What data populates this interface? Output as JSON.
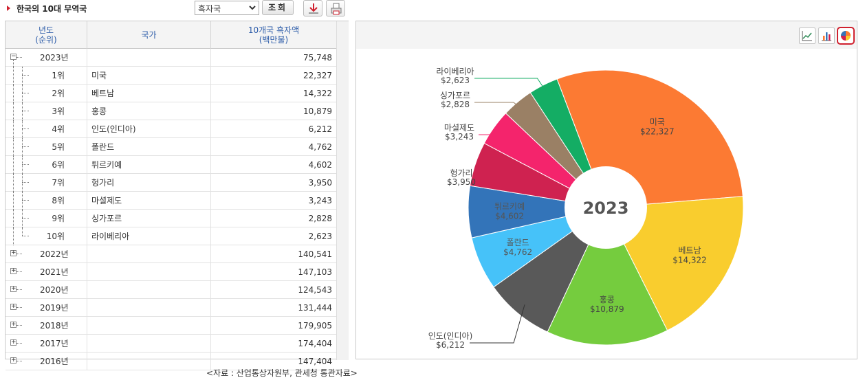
{
  "header": {
    "title": "한국의 10대 무역국",
    "select_value": "흑자국",
    "search_label": "조회"
  },
  "table": {
    "columns": [
      "년도\n(순위)",
      "국가",
      "10개국 흑자액\n(백만불)"
    ],
    "col1_line1": "년도",
    "col1_line2": "(순위)",
    "col2": "국가",
    "col3_line1": "10개국 흑자액",
    "col3_line2": "(백만불)",
    "rows": [
      {
        "kind": "year",
        "label": "2023년",
        "country": "",
        "value": "75,748",
        "expanded": true
      },
      {
        "kind": "child",
        "label": "1위",
        "country": "미국",
        "value": "22,327"
      },
      {
        "kind": "child",
        "label": "2위",
        "country": "베트남",
        "value": "14,322"
      },
      {
        "kind": "child",
        "label": "3위",
        "country": "홍콩",
        "value": "10,879"
      },
      {
        "kind": "child",
        "label": "4위",
        "country": "인도(인디아)",
        "value": "6,212"
      },
      {
        "kind": "child",
        "label": "5위",
        "country": "폴란드",
        "value": "4,762"
      },
      {
        "kind": "child",
        "label": "6위",
        "country": "튀르키예",
        "value": "4,602"
      },
      {
        "kind": "child",
        "label": "7위",
        "country": "헝가리",
        "value": "3,950"
      },
      {
        "kind": "child",
        "label": "8위",
        "country": "마셜제도",
        "value": "3,243"
      },
      {
        "kind": "child",
        "label": "9위",
        "country": "싱가포르",
        "value": "2,828"
      },
      {
        "kind": "child",
        "label": "10위",
        "country": "라이베리아",
        "value": "2,623"
      },
      {
        "kind": "year",
        "label": "2022년",
        "country": "",
        "value": "140,541",
        "expanded": false
      },
      {
        "kind": "year",
        "label": "2021년",
        "country": "",
        "value": "147,103",
        "expanded": false
      },
      {
        "kind": "year",
        "label": "2020년",
        "country": "",
        "value": "124,543",
        "expanded": false
      },
      {
        "kind": "year",
        "label": "2019년",
        "country": "",
        "value": "131,444",
        "expanded": false
      },
      {
        "kind": "year",
        "label": "2018년",
        "country": "",
        "value": "179,905",
        "expanded": false
      },
      {
        "kind": "year",
        "label": "2017년",
        "country": "",
        "value": "174,404",
        "expanded": false
      },
      {
        "kind": "year",
        "label": "2016년",
        "country": "",
        "value": "147,404",
        "expanded": false
      }
    ]
  },
  "chart_data": {
    "type": "pie",
    "center_label": "2023",
    "categories": [
      "미국",
      "베트남",
      "홍콩",
      "인도(인디아)",
      "폴란드",
      "튀르키예",
      "헝가리",
      "마셜제도",
      "싱가포르",
      "라이베리아"
    ],
    "values": [
      22327,
      14322,
      10879,
      6212,
      4762,
      4602,
      3950,
      3243,
      2828,
      2623
    ],
    "value_labels": [
      "$22,327",
      "$14,322",
      "$10,879",
      "$6,212",
      "$4,762",
      "$4,602",
      "$3,950",
      "$3,243",
      "$2,828",
      "$2,623"
    ],
    "colors": [
      "#fc7a33",
      "#f9cd2e",
      "#75cc3e",
      "#595959",
      "#46c2f9",
      "#3374b9",
      "#cf2250",
      "#f4246c",
      "#9a8065",
      "#14ad64"
    ]
  },
  "footer_note": "<자료 : 산업통상자원부, 관세청 통관자료>"
}
